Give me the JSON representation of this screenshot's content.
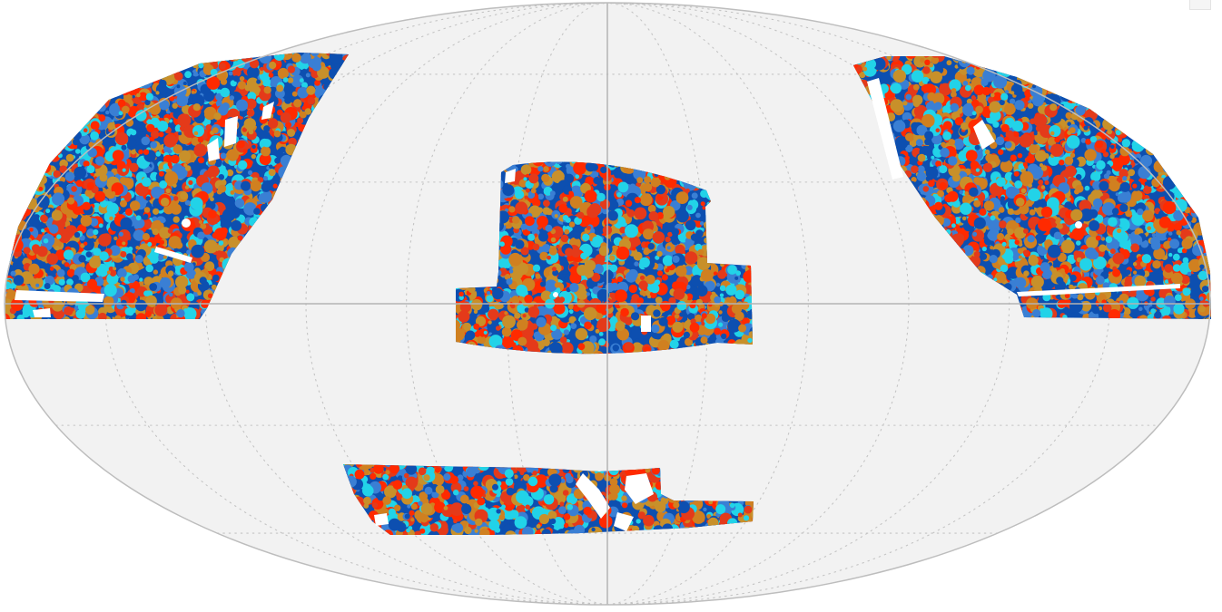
{
  "map": {
    "projection": "mollweide",
    "graticule": {
      "longitude_step_deg": 30,
      "latitude_step_deg": 30,
      "style": "dotted"
    },
    "colors": {
      "background": "#f2f2f2",
      "outline": "#bdbdbd",
      "axes": "#b3b3b3",
      "graticule": "#c4c4c4",
      "mask": "#ffffff"
    },
    "palette": [
      "#0d4fb0",
      "#3a7fd4",
      "#22d3e8",
      "#d08020",
      "#c8902a",
      "#e43a1a",
      "#ff2a00"
    ],
    "regions": [
      {
        "name": "region-top-left"
      },
      {
        "name": "region-center"
      },
      {
        "name": "region-top-right"
      },
      {
        "name": "region-bottom"
      }
    ]
  }
}
